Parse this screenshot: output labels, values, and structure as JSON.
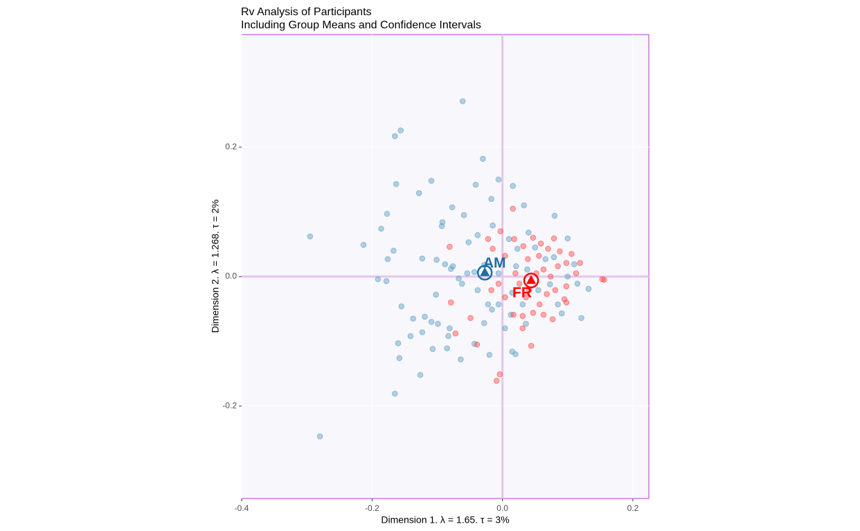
{
  "chart_data": {
    "type": "scatter",
    "title": "Rv Analysis of Participants",
    "subtitle": "Including Group Means and Confidence Intervals",
    "x_label": "Dimension 1.   λ = 1.65.  τ = 3%",
    "y_label": "Dimension 2.  λ = 1.268.  τ = 2%",
    "xlim": [
      -0.4,
      0.2245
    ],
    "ylim": [
      -0.343,
      0.374
    ],
    "xticks": [
      -0.4,
      -0.2,
      {
        "value": 0,
        "label": "0.0"
      },
      0.2
    ],
    "yticks": [
      -0.2,
      {
        "value": 0,
        "label": "0.0"
      },
      0.2
    ],
    "grid": true,
    "series": [
      {
        "name": "AM",
        "color": "#5a9ec4",
        "mean_color": "#1b6fa3",
        "mean_x": -0.027,
        "mean_y": 0.006,
        "x": [
          -0.295,
          -0.28,
          -0.061,
          -0.156,
          -0.165,
          -0.03,
          -0.163,
          -0.109,
          -0.128,
          -0.006,
          -0.041,
          -0.017,
          0.016,
          0.033,
          0.08,
          -0.077,
          -0.059,
          -0.177,
          -0.092,
          -0.093,
          -0.186,
          -0.213,
          -0.167,
          -0.176,
          -0.191,
          -0.178,
          -0.123,
          -0.101,
          -0.088,
          -0.076,
          -0.079,
          -0.067,
          -0.102,
          -0.155,
          -0.137,
          -0.119,
          -0.109,
          -0.099,
          -0.081,
          -0.083,
          -0.123,
          -0.141,
          -0.16,
          -0.107,
          -0.158,
          -0.085,
          -0.064,
          -0.126,
          -0.165,
          -0.02,
          0.015,
          0.02,
          -0.043,
          -0.016,
          -0.028,
          0.004,
          0.036,
          0.055,
          0.073,
          0.091,
          0.121,
          0.132,
          0.1,
          0.11,
          0.079,
          0.05,
          0.04,
          0.01,
          -0.015,
          -0.038,
          -0.052,
          -0.028,
          -0.043,
          -0.006,
          0.021,
          0.038,
          0.015,
          0.031,
          -0.006,
          0.085,
          0.1,
          0.115,
          0.066,
          0.023,
          -0.054,
          -0.038,
          -0.022,
          -0.062,
          0.013
        ],
        "values": [
          0.062,
          -0.247,
          0.271,
          0.226,
          0.217,
          0.182,
          0.143,
          0.148,
          0.129,
          0.15,
          0.142,
          0.12,
          0.14,
          0.11,
          0.094,
          0.107,
          0.095,
          0.097,
          0.084,
          0.078,
          0.074,
          0.049,
          0.04,
          0.027,
          -0.004,
          -0.007,
          0.028,
          0.026,
          0.019,
          0.016,
          0.012,
          -0.003,
          -0.028,
          -0.046,
          -0.065,
          -0.062,
          -0.07,
          -0.073,
          -0.08,
          -0.092,
          -0.086,
          -0.092,
          -0.103,
          -0.112,
          -0.126,
          -0.111,
          -0.128,
          -0.152,
          -0.181,
          -0.121,
          -0.116,
          -0.12,
          -0.104,
          -0.051,
          -0.072,
          -0.08,
          -0.073,
          -0.021,
          -0.012,
          -0.057,
          -0.064,
          -0.019,
          0.059,
          0.019,
          0.03,
          0.045,
          0.068,
          0.058,
          0.079,
          0.064,
          0.053,
          0.018,
          0.007,
          0.005,
          0.016,
          0.011,
          -0.025,
          -0.043,
          -0.043,
          -0.043,
          0.0,
          -0.011,
          0.027,
          0.043,
          0.005,
          -0.021,
          -0.043,
          -0.011,
          -0.059
        ]
      },
      {
        "name": "FR",
        "color": "#ff4a4a",
        "mean_color": "#ff0000",
        "mean_x": 0.044,
        "mean_y": -0.006,
        "x": [
          0.016,
          -0.022,
          -0.081,
          -0.003,
          0.018,
          0.032,
          0.047,
          0.059,
          0.079,
          0.07,
          0.088,
          0.098,
          0.119,
          0.113,
          0.153,
          0.156,
          0.098,
          0.081,
          0.095,
          0.068,
          0.057,
          0.063,
          0.077,
          0.047,
          0.031,
          0.017,
          0.004,
          -0.006,
          -0.017,
          -0.049,
          -0.072,
          -0.039,
          -0.009,
          -0.004,
          0.044,
          0.031,
          -0.079,
          0.039,
          0.052,
          0.026,
          0.041,
          0.063,
          0.085,
          0.02,
          0.004,
          -0.015,
          0.074,
          0.106,
          0.056,
          0.098,
          0.036
        ],
        "values": [
          0.105,
          0.058,
          0.046,
          0.07,
          0.058,
          0.047,
          0.06,
          0.051,
          0.059,
          0.043,
          0.039,
          0.021,
          0.021,
          0.005,
          -0.004,
          -0.005,
          -0.015,
          -0.021,
          -0.035,
          -0.027,
          -0.043,
          -0.059,
          -0.066,
          -0.056,
          -0.061,
          -0.059,
          -0.032,
          -0.011,
          -0.021,
          -0.064,
          -0.088,
          -0.105,
          -0.161,
          -0.151,
          -0.107,
          -0.08,
          -0.04,
          0.027,
          0.005,
          -0.011,
          -0.021,
          0.011,
          0.016,
          0.005,
          0.032,
          0.043,
          0.0,
          0.035,
          0.032,
          -0.04,
          -0.032
        ]
      }
    ]
  }
}
